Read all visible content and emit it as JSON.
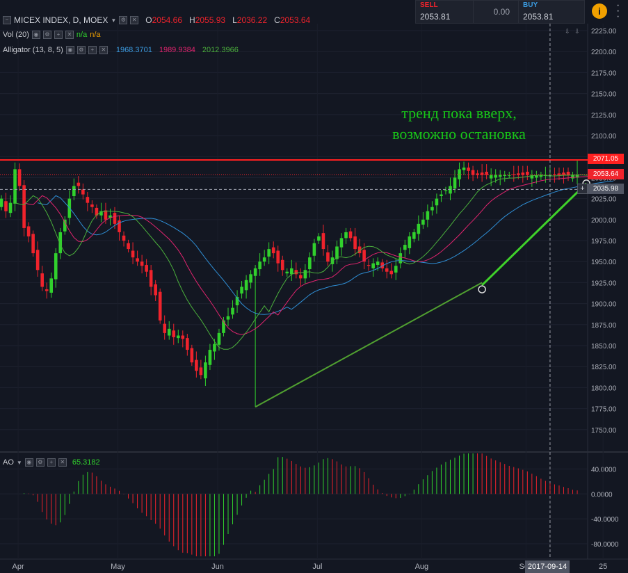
{
  "header": {
    "title": "MICEX INDEX, D, MOEX",
    "ohlc": [
      {
        "k": "O",
        "v": "2054.66"
      },
      {
        "k": "H",
        "v": "2055.93"
      },
      {
        "k": "L",
        "v": "2036.22"
      },
      {
        "k": "C",
        "v": "2053.64"
      }
    ]
  },
  "vol": {
    "label": "Vol (20)",
    "v1": "n/a",
    "v2": "n/a"
  },
  "alligator": {
    "label": "Alligator (13, 8, 5)",
    "jaw": "1968.3701",
    "teeth": "1989.9384",
    "lips": "2012.3966"
  },
  "ao": {
    "label": "AO",
    "value": "65.3182"
  },
  "trade": {
    "sell_label": "SELL",
    "sell_price": "2053.81",
    "spread": "0.00",
    "buy_label": "BUY",
    "buy_price": "2053.81"
  },
  "annotation": {
    "line1": "тренд пока вверх,",
    "line2": "возможно остановка"
  },
  "price_tags": {
    "resistance": "2071.05",
    "last": "2053.64",
    "crosshair": "2035.98"
  },
  "crosshair_date": "2017-09-14",
  "colors": {
    "up": "#31d12d",
    "down": "#f0232c",
    "jaw": "#2f8fd6",
    "teeth": "#e0246e",
    "lips": "#4bb03c",
    "resistance": "#ff2020",
    "trend": "#50a030",
    "annotation": "#18c818"
  },
  "chart_data": {
    "type": "candlestick",
    "price_axis": {
      "range": [
        1725,
        2230
      ],
      "ticks": [
        1750,
        1775,
        1800,
        1825,
        1850,
        1875,
        1900,
        1925,
        1950,
        1975,
        2000,
        2025,
        2050,
        2075,
        2100,
        2125,
        2150,
        2175,
        2200,
        2225
      ]
    },
    "ao_axis": {
      "range": [
        -100,
        65
      ],
      "ticks": [
        "40.0000",
        "0.0000",
        "-40.0000",
        "-80.0000"
      ],
      "tick_values": [
        40,
        0,
        -40,
        -80
      ]
    },
    "x_labels": [
      "Apr",
      "May",
      "Jun",
      "Jul",
      "Aug",
      "Sep",
      "25"
    ],
    "x_label_bars": [
      4,
      26,
      48,
      70,
      93,
      116,
      133
    ],
    "bars": 135,
    "closes": [
      2025,
      2010,
      2020,
      2060,
      2040,
      1990,
      1980,
      1960,
      1940,
      1920,
      1915,
      1930,
      1960,
      1985,
      2000,
      2025,
      2040,
      2040,
      2030,
      2020,
      2015,
      2005,
      2010,
      2000,
      2005,
      1995,
      1985,
      1975,
      1965,
      1955,
      1950,
      1945,
      1938,
      1920,
      1910,
      1880,
      1865,
      1870,
      1860,
      1862,
      1858,
      1845,
      1830,
      1820,
      1815,
      1830,
      1845,
      1852,
      1865,
      1880,
      1885,
      1895,
      1908,
      1920,
      1928,
      1935,
      1942,
      1950,
      1955,
      1965,
      1960,
      1948,
      1940,
      1938,
      1942,
      1935,
      1930,
      1940,
      1955,
      1972,
      1980,
      1965,
      1950,
      1955,
      1968,
      1978,
      1985,
      1978,
      1965,
      1960,
      1950,
      1945,
      1948,
      1950,
      1942,
      1938,
      1935,
      1945,
      1960,
      1970,
      1980,
      1985,
      1995,
      2000,
      2010,
      2015,
      2025,
      2030,
      2035,
      2040,
      2050,
      2060,
      2062,
      2058,
      2053,
      2053,
      2053,
      2053,
      2053,
      2053,
      2053,
      2053,
      2053,
      2053,
      2053,
      2053,
      2053,
      2053,
      2053,
      2053,
      2053,
      2053,
      2053,
      2053,
      2053,
      2053,
      2053,
      2053,
      2053,
      2053,
      2053,
      2053,
      2053,
      2053,
      2053
    ],
    "alligator": {
      "jaw_shift": 8,
      "teeth_shift": 5,
      "lips_shift": 3
    },
    "resistance_level": 2071.05,
    "trendlines": [
      {
        "from": [
          56,
          1777
        ],
        "to": [
          106,
          1925
        ]
      },
      {
        "from": [
          106,
          1922
        ],
        "to": [
          129,
          2043
        ]
      }
    ],
    "markers": [
      [
        106,
        1917
      ],
      [
        129,
        2043
      ]
    ]
  }
}
